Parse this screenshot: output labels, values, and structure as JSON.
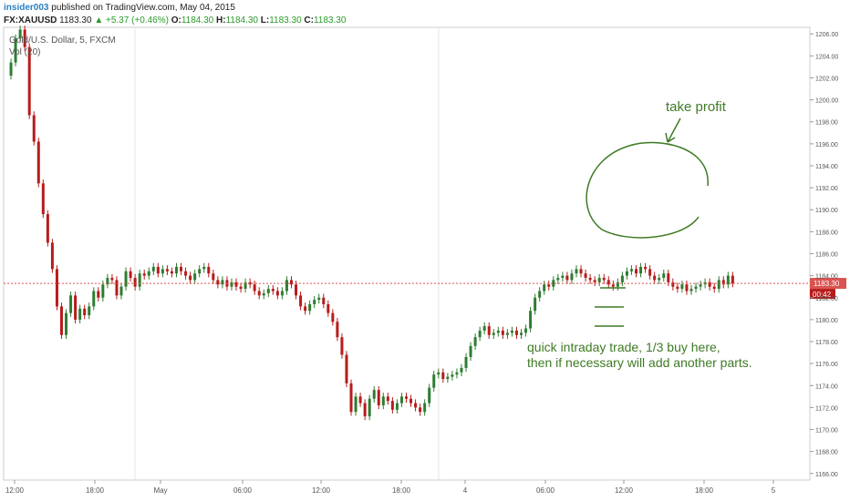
{
  "header": {
    "author": "insider003",
    "published": "published on TradingView.com, May 04, 2015",
    "symbol": "FX:XAUUSD",
    "last": "1183.30",
    "change": "▲ +5.37 (+0.46%)",
    "o_label": "O:",
    "o_value": "1184.30",
    "h_label": "H:",
    "h_value": "1184.30",
    "l_label": "L:",
    "l_value": "1183.30",
    "c_label": "C:",
    "c_value": "1183.30"
  },
  "overlay": {
    "title": "Gold/U.S. Dollar, 5, FXCM",
    "vol": "Vol (20)"
  },
  "annotations": {
    "take_profit": "take profit",
    "note_line1": "quick intraday trade, 1/3 buy here,",
    "note_line2": "then if necessary will add another parts."
  },
  "price_tags": {
    "current": "1183.30",
    "countdown": "00:42"
  },
  "colors": {
    "up": "#2e7d32",
    "down": "#b71c1c",
    "annotation": "#3e7a24",
    "price_line": "#d9534f",
    "grid": "#e6e6e6"
  },
  "chart_data": {
    "type": "candlestick",
    "title": "Gold/U.S. Dollar, 5, FXCM",
    "x_ticks": [
      "12:00",
      "18:00",
      "May",
      "06:00",
      "12:00",
      "18:00",
      "4",
      "06:00",
      "12:00",
      "18:00",
      "5"
    ],
    "y_ticks": [
      "1166.00",
      "1168.00",
      "1170.00",
      "1172.00",
      "1174.00",
      "1176.00",
      "1178.00",
      "1180.00",
      "1182.00",
      "1184.00",
      "1186.00",
      "1188.00",
      "1190.00",
      "1192.00",
      "1194.00",
      "1196.00",
      "1198.00",
      "1200.00",
      "1202.00",
      "1204.00",
      "1206.00"
    ],
    "ylim": [
      1165.4,
      1206.6
    ],
    "x_range": [
      0,
      174
    ],
    "close_series": [
      1202.2,
      1203.4,
      1205.6,
      1206.4,
      1204.8,
      1198.6,
      1196.2,
      1192.4,
      1189.6,
      1187.0,
      1184.6,
      1181.2,
      1178.6,
      1180.6,
      1182.2,
      1180.0,
      1181.0,
      1180.4,
      1181.2,
      1182.6,
      1182.0,
      1183.2,
      1183.8,
      1183.6,
      1182.2,
      1183.0,
      1184.4,
      1183.8,
      1183.0,
      1184.2,
      1184.0,
      1184.4,
      1184.8,
      1184.2,
      1184.6,
      1184.4,
      1184.2,
      1184.8,
      1184.4,
      1184.0,
      1183.6,
      1184.2,
      1184.6,
      1184.8,
      1184.2,
      1183.6,
      1183.2,
      1183.6,
      1183.0,
      1183.4,
      1183.0,
      1182.8,
      1183.4,
      1183.2,
      1182.6,
      1182.2,
      1182.4,
      1182.8,
      1182.6,
      1182.2,
      1182.6,
      1183.6,
      1183.2,
      1182.2,
      1181.2,
      1180.8,
      1181.4,
      1181.8,
      1182.0,
      1181.4,
      1180.6,
      1179.8,
      1178.4,
      1176.8,
      1174.2,
      1171.6,
      1173.0,
      1172.4,
      1171.2,
      1172.8,
      1173.6,
      1172.2,
      1173.0,
      1172.6,
      1171.8,
      1172.4,
      1173.0,
      1172.8,
      1172.4,
      1172.0,
      1171.6,
      1172.4,
      1173.8,
      1175.0,
      1175.2,
      1174.6,
      1174.8,
      1175.0,
      1175.2,
      1175.6,
      1176.6,
      1177.6,
      1178.4,
      1179.0,
      1179.4,
      1178.6,
      1178.8,
      1179.0,
      1178.6,
      1178.8,
      1179.0,
      1178.6,
      1178.8,
      1179.2,
      1180.8,
      1182.0,
      1182.6,
      1183.2,
      1183.0,
      1183.6,
      1183.8,
      1184.0,
      1183.6,
      1184.2,
      1184.6,
      1184.2,
      1183.8,
      1183.6,
      1183.4,
      1183.8,
      1183.6,
      1183.2,
      1183.0,
      1183.4,
      1184.0,
      1184.4,
      1184.6,
      1184.2,
      1184.8,
      1184.6,
      1184.0,
      1183.6,
      1183.8,
      1184.2,
      1183.4,
      1183.0,
      1182.8,
      1183.2,
      1182.6,
      1182.8,
      1183.0,
      1183.2,
      1183.4,
      1183.0,
      1182.8,
      1183.6,
      1183.2,
      1184.0,
      1183.3
    ],
    "last_price": 1183.3
  }
}
